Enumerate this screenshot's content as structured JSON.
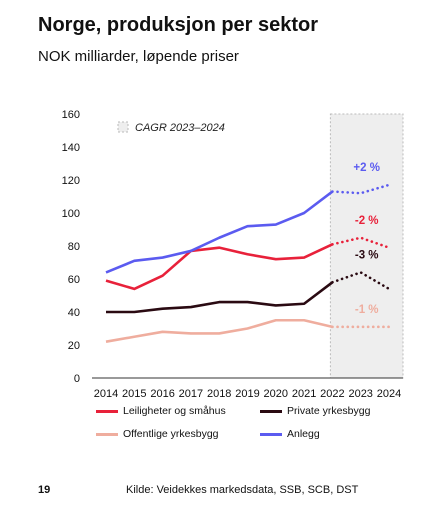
{
  "page": {
    "title": "Norge, produksjon per sektor",
    "subtitle": "NOK milliarder, løpende priser",
    "page_number": "19",
    "source": "Kilde: Veidekkes markedsdata, SSB, SCB, DST"
  },
  "chart_data": {
    "type": "line",
    "title": "Norge, produksjon per sektor",
    "subtitle": "NOK milliarder, løpende priser",
    "x": [
      2014,
      2015,
      2016,
      2017,
      2018,
      2019,
      2020,
      2021,
      2022,
      2023,
      2024
    ],
    "xlabel": "",
    "ylabel": "",
    "ylim": [
      0,
      160
    ],
    "yticks": [
      0,
      20,
      40,
      60,
      80,
      100,
      120,
      140,
      160
    ],
    "grid": false,
    "forecast_from": 2022,
    "forecast_box_label": "CAGR 2023–2024",
    "legend_position": "bottom",
    "series": [
      {
        "name": "Leiligheter og småhus",
        "color": "#e8213a",
        "values": [
          59,
          54,
          62,
          77,
          79,
          75,
          72,
          73,
          81,
          85,
          79
        ],
        "cagr": "-2 %"
      },
      {
        "name": "Private yrkesbygg",
        "color": "#2a0a12",
        "values": [
          40,
          40,
          42,
          43,
          46,
          46,
          44,
          45,
          58,
          64,
          54
        ],
        "cagr": "-3 %"
      },
      {
        "name": "Offentlige yrkesbygg",
        "color": "#efad9e",
        "values": [
          22,
          25,
          28,
          27,
          27,
          30,
          35,
          35,
          31,
          31,
          31
        ],
        "cagr": "-1 %"
      },
      {
        "name": "Anlegg",
        "color": "#5b5bf0",
        "values": [
          64,
          71,
          73,
          77,
          85,
          92,
          93,
          100,
          113,
          112,
          117
        ],
        "cagr": "+2 %"
      }
    ]
  }
}
